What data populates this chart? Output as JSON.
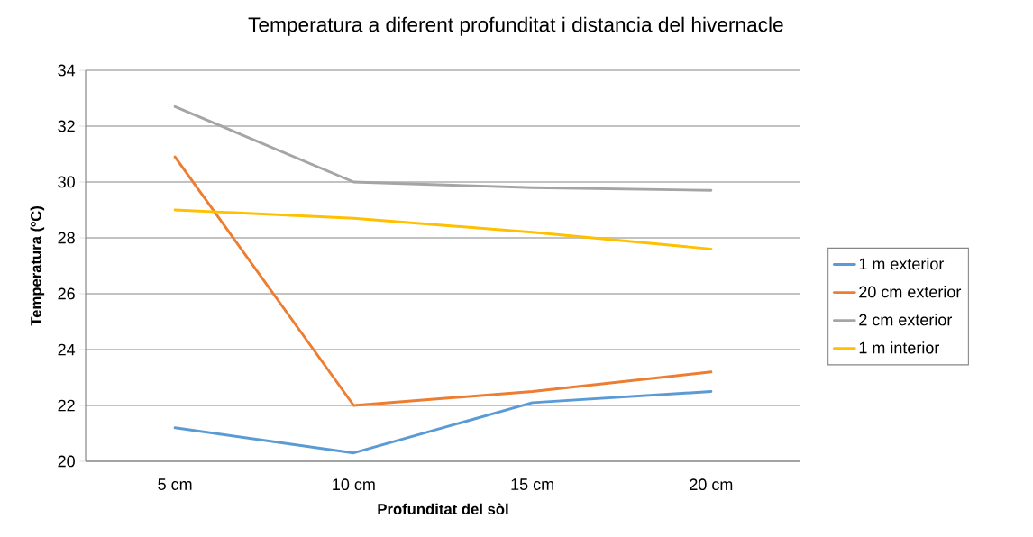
{
  "chart_data": {
    "type": "line",
    "title": "Temperatura a diferent profunditat i distancia del hivernacle",
    "xlabel": "Profunditat del sòl",
    "ylabel": "Temperatura (ºC)",
    "categories": [
      "5 cm",
      "10 cm",
      "15 cm",
      "20 cm"
    ],
    "series": [
      {
        "name": "1 m exterior",
        "color": "#5b9bd5",
        "values": [
          21.2,
          20.3,
          22.1,
          22.5
        ]
      },
      {
        "name": "20 cm exterior",
        "color": "#ed7d31",
        "values": [
          30.9,
          22.0,
          22.5,
          23.2
        ]
      },
      {
        "name": "2 cm exterior",
        "color": "#a5a5a5",
        "values": [
          32.7,
          30.0,
          29.8,
          29.7
        ]
      },
      {
        "name": "1 m interior",
        "color": "#ffc000",
        "values": [
          29.0,
          28.7,
          28.2,
          27.6
        ]
      }
    ],
    "ylim": [
      20,
      34
    ],
    "yticks": [
      20,
      22,
      24,
      26,
      28,
      30,
      32,
      34
    ],
    "grid": "y",
    "legend": "right",
    "marker": "none",
    "line_style": "solid"
  }
}
